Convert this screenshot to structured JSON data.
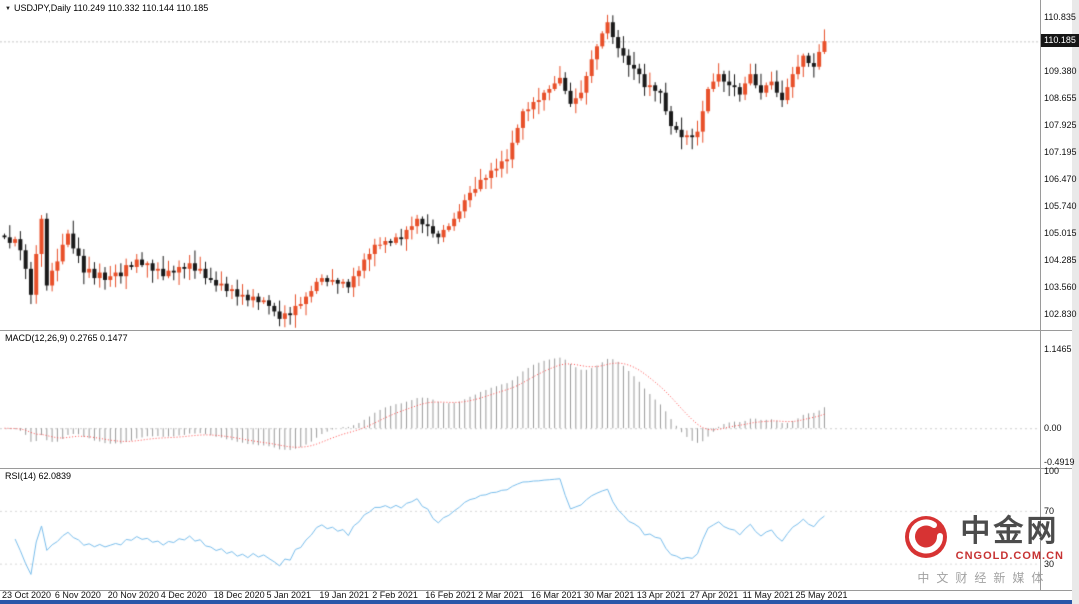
{
  "ui": {
    "symbol_title": "USDJPY,Daily 110.249 110.332 110.144 110.185",
    "title_marker_icon": "▼",
    "macd_label": "MACD(12,26,9) 0.2765 0.1477",
    "rsi_label": "RSI(14) 62.0839",
    "price_tag": "110.185",
    "watermark": {
      "brand": "中金网",
      "domain": "CNGOLD.COM.CN",
      "tagline": "中文财经新媒体",
      "logo_color": "#d42222"
    }
  },
  "chart_data": [
    {
      "type": "candlestick",
      "title": "USDJPY,Daily",
      "ohlc_header": {
        "open": "110.249",
        "high": "110.332",
        "low": "110.144",
        "close": "110.185"
      },
      "last_price": 110.185,
      "first_open": 104.95,
      "up_color": "#e8502a",
      "down_color": "#1a1a1a",
      "ylim": [
        102.4,
        111.3
      ],
      "y_tick_labels": [
        "110.835",
        "109.380",
        "108.655",
        "107.925",
        "107.195",
        "106.470",
        "105.740",
        "105.015",
        "104.285",
        "103.560",
        "102.830"
      ],
      "x_tick_labels": [
        "23 Oct 2020",
        "6 Nov 2020",
        "20 Nov 2020",
        "4 Dec 2020",
        "18 Dec 2020",
        "5 Jan 2021",
        "19 Jan 2021",
        "2 Feb 2021",
        "16 Feb 2021",
        "2 Mar 2021",
        "16 Mar 2021",
        "30 Mar 2021",
        "13 Apr 2021",
        "27 Apr 2021",
        "11 May 2021",
        "25 May 2021"
      ],
      "closes": [
        104.9,
        104.75,
        104.85,
        104.55,
        104.05,
        103.35,
        104.45,
        105.4,
        103.6,
        104.0,
        104.25,
        104.7,
        105.0,
        104.6,
        104.4,
        103.95,
        104.05,
        103.8,
        103.95,
        103.75,
        103.85,
        103.95,
        103.85,
        104.15,
        104.1,
        104.3,
        104.15,
        104.2,
        104.0,
        104.05,
        103.85,
        104.0,
        103.95,
        104.1,
        104.05,
        104.2,
        104.0,
        104.05,
        103.8,
        103.75,
        103.6,
        103.65,
        103.45,
        103.5,
        103.3,
        103.35,
        103.2,
        103.3,
        103.15,
        103.2,
        103.05,
        102.9,
        102.7,
        102.85,
        102.8,
        103.05,
        103.1,
        103.3,
        103.45,
        103.7,
        103.8,
        103.7,
        103.75,
        103.65,
        103.7,
        103.55,
        103.85,
        104.0,
        104.3,
        104.45,
        104.7,
        104.7,
        104.8,
        104.75,
        104.9,
        104.85,
        105.1,
        105.2,
        105.4,
        105.25,
        105.2,
        105.0,
        104.9,
        105.1,
        105.2,
        105.4,
        105.6,
        105.9,
        106.1,
        106.2,
        106.45,
        106.5,
        106.7,
        106.75,
        106.95,
        107.0,
        107.45,
        107.85,
        108.3,
        108.35,
        108.55,
        108.6,
        108.8,
        108.9,
        109.05,
        109.2,
        108.85,
        108.5,
        108.65,
        108.8,
        109.25,
        109.7,
        110.05,
        110.4,
        110.7,
        110.3,
        110.0,
        109.8,
        109.55,
        109.45,
        109.3,
        108.95,
        109.0,
        108.85,
        108.8,
        108.3,
        107.9,
        107.8,
        107.6,
        107.65,
        107.6,
        107.75,
        108.3,
        108.9,
        109.1,
        109.3,
        109.1,
        109.0,
        108.95,
        108.75,
        109.05,
        109.3,
        109.0,
        108.8,
        109.0,
        109.1,
        108.8,
        108.6,
        108.95,
        109.3,
        109.5,
        109.8,
        109.6,
        109.5,
        109.9,
        110.19
      ]
    },
    {
      "type": "bar",
      "title": "MACD(12,26,9)",
      "params": [
        12,
        26,
        9
      ],
      "current_values": [
        "0.2765",
        "0.1477"
      ],
      "ylim": [
        -0.55,
        1.4
      ],
      "y_tick_labels": [
        "1.1465",
        "0.00",
        "-0.4919"
      ],
      "histogram_color": "#9b9b9b",
      "signal_color": "#ff4b4b"
    },
    {
      "type": "line",
      "title": "RSI(14)",
      "params": [
        14
      ],
      "current_value": "62.0839",
      "ylim": [
        10,
        101
      ],
      "y_tick_labels": [
        "100",
        "70",
        "30"
      ],
      "levels": [
        70,
        30
      ],
      "line_color": "#79bdeb"
    }
  ]
}
